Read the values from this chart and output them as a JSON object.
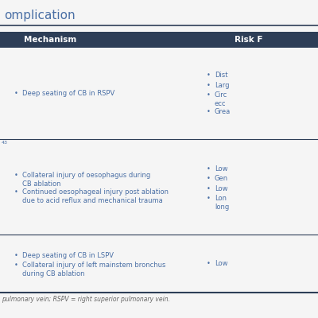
{
  "header_bg": "#2d3e57",
  "header_text_color": "#ffffff",
  "body_bg": "#f5f5f5",
  "row_text_color": "#4a6fa5",
  "border_color": "#2d3e57",
  "footnote_color": "#666666",
  "col1_header": "Mechanism",
  "col2_header": "Risk F",
  "title_text": "omplication",
  "title_color": "#4a6fa5",
  "title_fontsize": 11,
  "header_fontsize": 7.5,
  "body_fontsize": 6.0,
  "footnote_fontsize": 5.5,
  "rows": [
    {
      "col1_bullets": [
        "Deep seating of CB in RSPV"
      ],
      "col2_bullets": [
        "Dist",
        "Larg",
        "Circ\necc",
        "Grea"
      ],
      "ref": ""
    },
    {
      "col1_bullets": [
        "Collateral injury of oesophagus during\nCB ablation",
        "Continued oesophageal injury post ablation\ndue to acid reflux and mechanical trauma"
      ],
      "col2_bullets": [
        "Low",
        "Gen",
        "Low",
        "Lon\nlong"
      ],
      "ref": "43"
    },
    {
      "col1_bullets": [
        "Deep seating of CB in LSPV",
        "Collateral injury of left mainstem bronchus\nduring CB ablation"
      ],
      "col2_bullets": [
        "Low"
      ],
      "ref": ""
    }
  ],
  "footnote": "pulmonary vein; RSPV = right superior pulmonary vein."
}
